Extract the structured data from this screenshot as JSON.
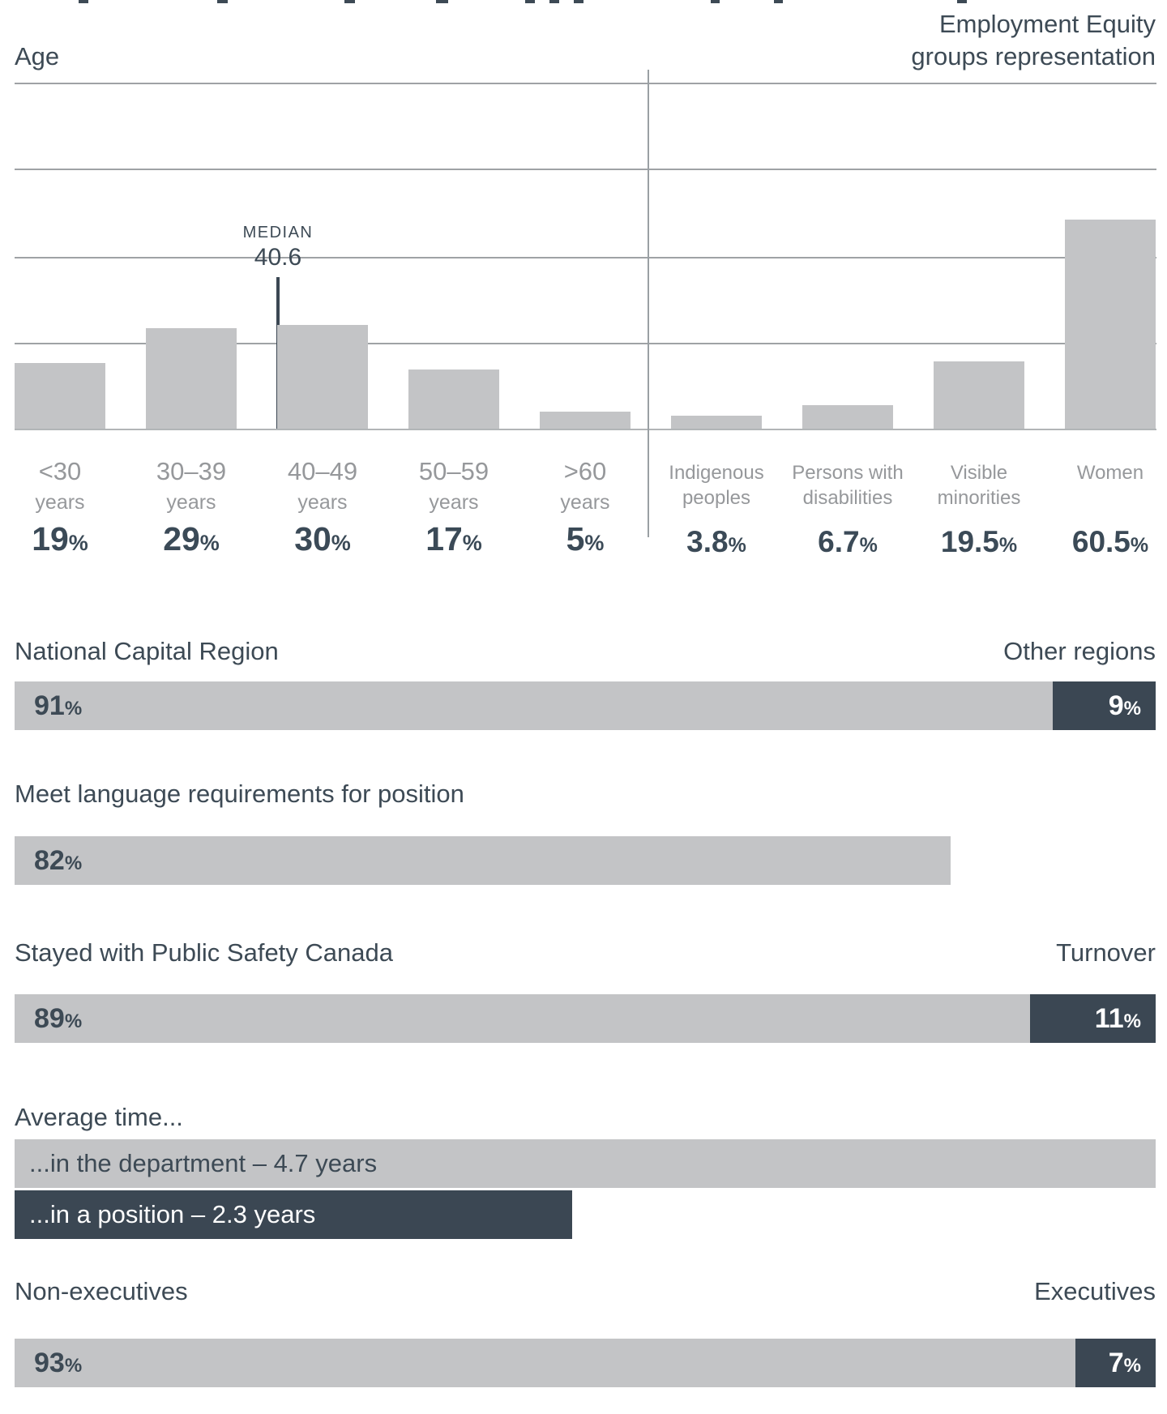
{
  "titles": {
    "age": "Age",
    "equity_line1": "Employment Equity",
    "equity_line2": "groups representation"
  },
  "symbols": {
    "percent": "%"
  },
  "chart_data": {
    "type": "bar",
    "title_left": "Age",
    "title_right": "Employment Equity groups representation",
    "ylabel": "",
    "ylim": [
      0,
      100
    ],
    "gridlines_pct": [
      25,
      50,
      75,
      100
    ],
    "median": {
      "label": "MEDIAN",
      "value": "40.6"
    },
    "age_groups": [
      {
        "label": "<30",
        "sublabel": "years",
        "value": 19,
        "value_display": "19"
      },
      {
        "label": "30–39",
        "sublabel": "years",
        "value": 29,
        "value_display": "29"
      },
      {
        "label": "40–49",
        "sublabel": "years",
        "value": 30,
        "value_display": "30"
      },
      {
        "label": "50–59",
        "sublabel": "years",
        "value": 17,
        "value_display": "17"
      },
      {
        "label": ">60",
        "sublabel": "years",
        "value": 5,
        "value_display": "5"
      }
    ],
    "equity_groups": [
      {
        "label_line1": "Indigenous",
        "label_line2": "peoples",
        "value": 3.8,
        "value_display": "3.8"
      },
      {
        "label_line1": "Persons with",
        "label_line2": "disabilities",
        "value": 6.7,
        "value_display": "6.7"
      },
      {
        "label_line1": "Visible",
        "label_line2": "minorities",
        "value": 19.5,
        "value_display": "19.5"
      },
      {
        "label_line1": "Women",
        "label_line2": "",
        "value": 60.5,
        "value_display": "60.5"
      }
    ]
  },
  "rows": {
    "region": {
      "label_left": "National Capital Region",
      "label_right": "Other regions",
      "left_value": "91",
      "right_value": "9",
      "left_pct": 91
    },
    "language": {
      "label": "Meet language requirements for position",
      "value": "82",
      "pct": 82
    },
    "retention": {
      "label_left": "Stayed with Public Safety Canada",
      "label_right": "Turnover",
      "left_value": "89",
      "right_value": "11",
      "left_pct": 89
    },
    "average_time": {
      "label": "Average time...",
      "bars": [
        {
          "text": "...in the department – 4.7 years",
          "years": 4.7,
          "width_pct": 100
        },
        {
          "text": "...in a position – 2.3 years",
          "years": 2.3,
          "width_pct": 48.9
        }
      ]
    },
    "executives": {
      "label_left": "Non-executives",
      "label_right": "Executives",
      "left_value": "93",
      "right_value": "7",
      "left_pct": 93
    }
  },
  "colors": {
    "dark": "#3b4753",
    "bar_gray": "#c3c4c6",
    "text_dark": "#3d4a55",
    "text_gray": "#96989b"
  }
}
